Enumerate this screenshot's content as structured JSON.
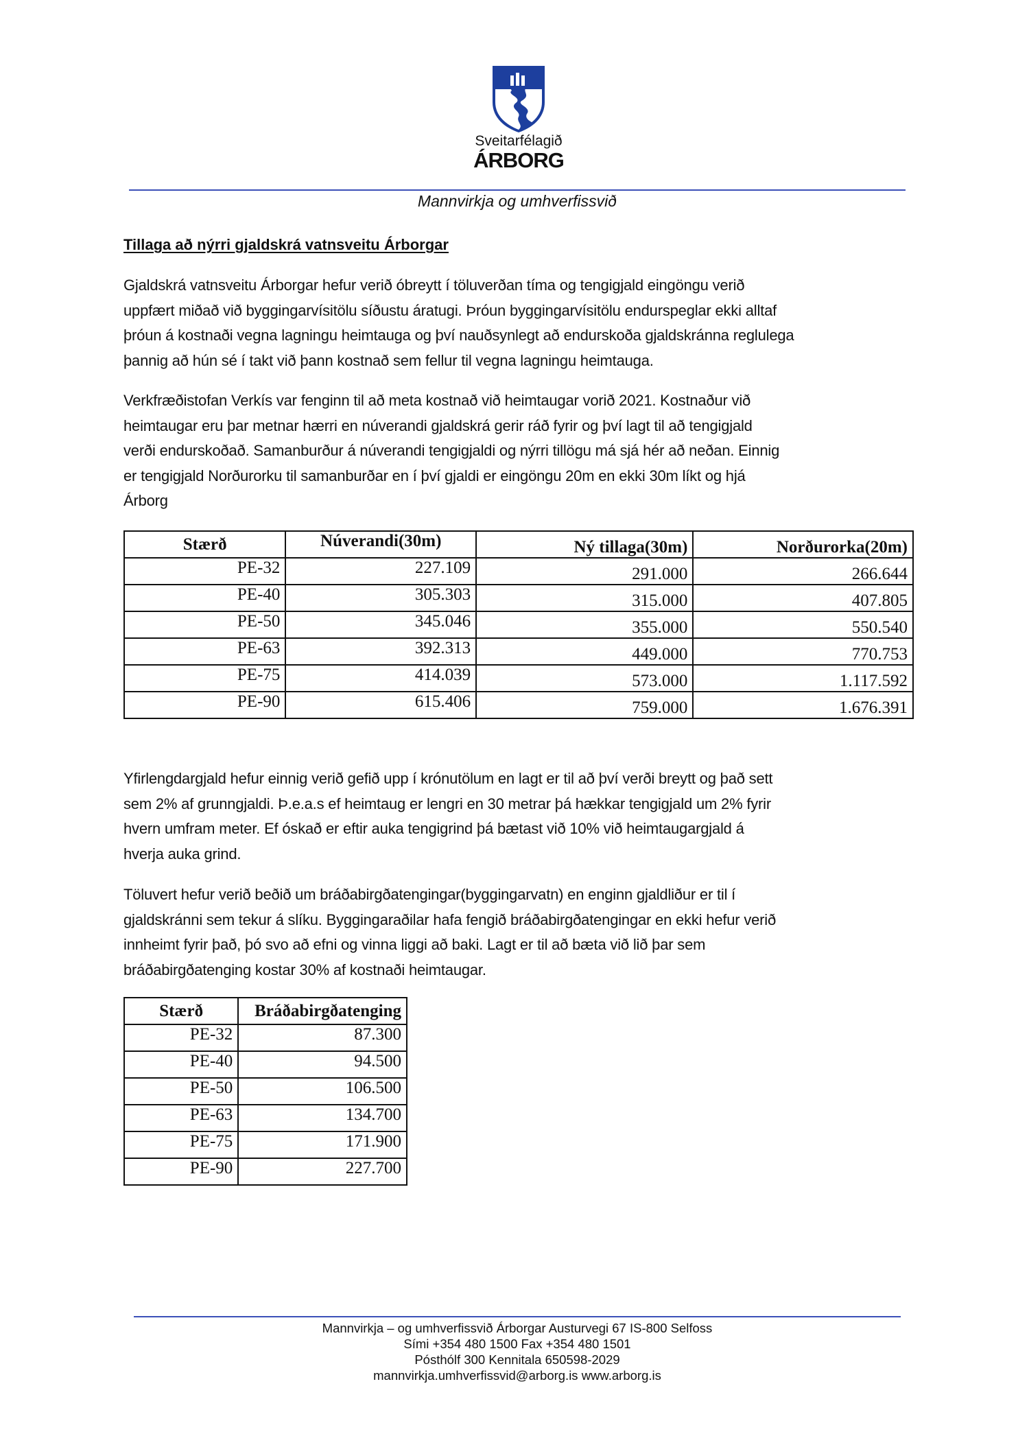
{
  "header": {
    "logo": {
      "name": "Sveitarfélagið",
      "brand": "ÁRBORG",
      "color": "#1d3f9e"
    },
    "department": "Mannvirkja og umhverfissvið",
    "rule_color": "#3b4fb8"
  },
  "title": "Tillaga að nýrri gjaldskrá vatnsveitu Árborgar",
  "paragraphs": [
    {
      "lines": [
        "Gjaldskrá vatnsveitu Árborgar hefur verið óbreytt í töluverðan tíma og tengigjald eingöngu verið",
        "uppfært miðað við byggingarvísitölu síðustu áratugi. Þróun byggingarvísitölu endurspeglar ekki alltaf",
        "þróun á kostnaði vegna lagningu heimtauga og því nauðsynlegt að endurskoða gjaldskránna reglulega",
        "þannig að hún sé í takt við þann kostnað sem fellur til vegna lagningu heimtauga."
      ]
    },
    {
      "lines": [
        "Verkfræðistofan Verkís var fenginn til að meta kostnað við heimtaugar vorið 2021. Kostnaður við",
        "heimtaugar eru þar metnar hærri en núverandi gjaldskrá gerir ráð fyrir og því lagt til að tengigjald",
        "verði endurskoðað.  Samanburður á núverandi tengigjaldi og nýrri tillögu má sjá hér að neðan. Einnig",
        "er tengigjald Norðurorku til samanburðar en í því gjaldi er eingöngu 20m en ekki 30m líkt og hjá",
        "Árborg"
      ]
    },
    {
      "lines": [
        "Yfirlengdargjald hefur einnig verið gefið upp í krónutölum en lagt er til að því verði breytt og það sett",
        "sem 2% af grunngjaldi. Þ.e.a.s ef heimtaug er lengri en 30 metrar þá hækkar tengigjald um 2% fyrir",
        "hvern umfram meter. Ef óskað er eftir auka tengigrind þá bætast við 10% við heimtaugargjald á",
        "hverja auka grind."
      ]
    },
    {
      "lines": [
        "Töluvert hefur verið beðið um bráðabirgðatengingar(byggingarvatn) en enginn gjaldliður er til í",
        "gjaldskránni sem tekur á slíku. Byggingaraðilar hafa fengið bráðabirgðatengingar en ekki hefur verið",
        "innheimt fyrir það, þó svo að efni og vinna liggi að baki. Lagt er til að bæta við lið þar sem",
        "bráðabirgðatenging kostar 30% af kostnaði heimtaugar."
      ]
    }
  ],
  "table1": {
    "headers": [
      "Stærð",
      "Núverandi(30m)",
      "Ný tillaga(30m)",
      "Norðurorka(20m)"
    ],
    "rows": [
      [
        "PE-32",
        "227.109",
        "291.000",
        "266.644"
      ],
      [
        "PE-40",
        "305.303",
        "315.000",
        "407.805"
      ],
      [
        "PE-50",
        "345.046",
        "355.000",
        "550.540"
      ],
      [
        "PE-63",
        "392.313",
        "449.000",
        "770.753"
      ],
      [
        "PE-75",
        "414.039",
        "573.000",
        "1.117.592"
      ],
      [
        "PE-90",
        "615.406",
        "759.000",
        "1.676.391"
      ]
    ]
  },
  "table2": {
    "headers": [
      "Stærð",
      "Bráðabirgðatenging"
    ],
    "rows": [
      [
        "PE-32",
        "87.300"
      ],
      [
        "PE-40",
        "94.500"
      ],
      [
        "PE-50",
        "106.500"
      ],
      [
        "PE-63",
        "134.700"
      ],
      [
        "PE-75",
        "171.900"
      ],
      [
        "PE-90",
        "227.700"
      ]
    ]
  },
  "footer": {
    "lines": [
      "Mannvirkja – og umhverfissvið Árborgar Austurvegi 67   IS-800 Selfoss",
      "Sími +354 480 1500  Fax +354 480 1501",
      "Pósthólf 300  Kennitala 650598-2029",
      "mannvirkja.umhverfissvid@arborg.is  www.arborg.is"
    ]
  }
}
